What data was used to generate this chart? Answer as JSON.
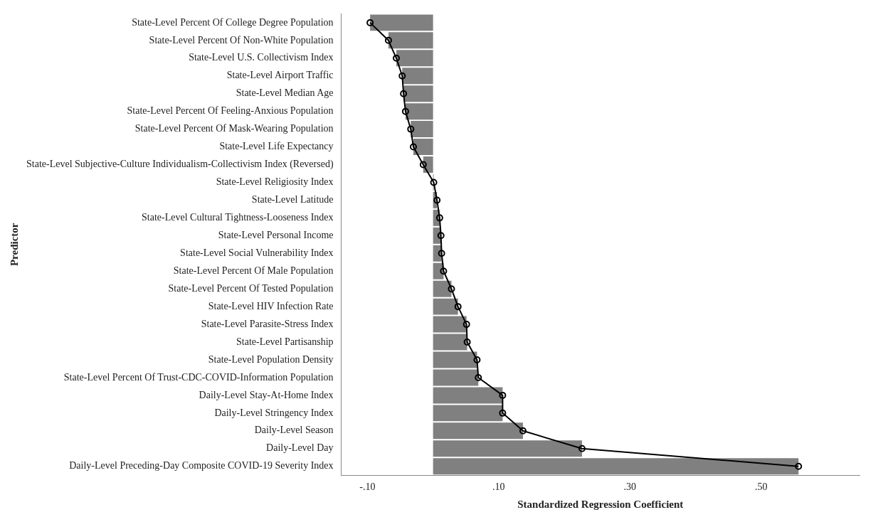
{
  "chart_data": {
    "type": "bar",
    "orientation": "horizontal",
    "xlabel": "Standardized Regression Coefficient",
    "ylabel": "Predictor",
    "categories": [
      "State-Level Percent Of College Degree Population",
      "State-Level Percent Of Non-White Population",
      "State-Level U.S. Collectivism Index",
      "State-Level Airport Traffic",
      "State-Level Median Age",
      "State-Level Percent Of Feeling-Anxious Population",
      "State-Level Percent Of Mask-Wearing Population",
      "State-Level Life Expectancy",
      "State-Level Subjective-Culture Individualism-Collectivism Index (Reversed)",
      "State-Level Religiosity Index",
      "State-Level Latitude",
      "State-Level Cultural Tightness-Looseness Index",
      "State-Level Personal Income",
      "State-Level Social Vulnerability Index",
      "State-Level Percent Of Male Population",
      "State-Level Percent Of Tested Population",
      "State-Level HIV Infection Rate",
      "State-Level Parasite-Stress Index",
      "State-Level Partisanship",
      "State-Level Population Density",
      "State-Level Percent Of Trust-CDC-COVID-Information Population",
      "Daily-Level Stay-At-Home Index",
      "Daily-Level Stringency Index",
      "Daily-Level Season",
      "Daily-Level Day",
      "Daily-Level Preceding-Day Composite COVID-19 Severity Index"
    ],
    "series": [
      {
        "color": "#808080",
        "values": [
          -0.096,
          -0.068,
          -0.056,
          -0.047,
          -0.045,
          -0.042,
          -0.034,
          -0.03,
          -0.015,
          0.001,
          0.006,
          0.01,
          0.012,
          0.013,
          0.016,
          0.028,
          0.038,
          0.051,
          0.052,
          0.067,
          0.069,
          0.106,
          0.106,
          0.137,
          0.227,
          0.557
        ]
      },
      {
        "type": "line",
        "color": "#000000",
        "values": [
          -0.096,
          -0.068,
          -0.056,
          -0.047,
          -0.045,
          -0.042,
          -0.034,
          -0.03,
          -0.015,
          0.001,
          0.006,
          0.01,
          0.012,
          0.013,
          0.016,
          0.028,
          0.038,
          0.051,
          0.052,
          0.067,
          0.069,
          0.106,
          0.106,
          0.137,
          0.227,
          0.557
        ]
      }
    ],
    "marker": "circle",
    "grid": false,
    "legend": false,
    "xlim": [
      -0.14,
      0.65
    ],
    "xticks": [
      {
        "value": -0.1,
        "label": "-.10"
      },
      {
        "value": 0.1,
        "label": ".10"
      },
      {
        "value": 0.3,
        "label": ".30"
      },
      {
        "value": 0.5,
        "label": ".50"
      }
    ]
  }
}
